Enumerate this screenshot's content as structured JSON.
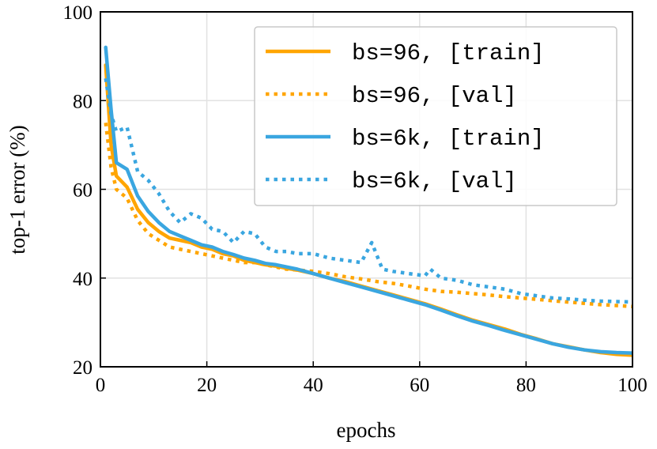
{
  "chart_data": {
    "type": "line",
    "title": "",
    "xlabel": "epochs",
    "ylabel": "top-1 error (%)",
    "xlim": [
      0,
      100
    ],
    "ylim": [
      20,
      100
    ],
    "x_ticks": [
      0,
      20,
      40,
      60,
      80,
      100
    ],
    "y_ticks": [
      20,
      40,
      60,
      80,
      100
    ],
    "grid": true,
    "legend_position": "top-right",
    "series": [
      {
        "name": "bs=96, [train]",
        "color": "#FFA500",
        "style": "solid",
        "x": [
          1,
          2,
          3,
          5,
          7,
          9,
          11,
          13,
          15,
          17,
          19,
          21,
          23,
          25,
          27,
          29,
          31,
          33,
          35,
          37,
          40,
          43,
          46,
          49,
          52,
          55,
          58,
          61,
          64,
          67,
          70,
          73,
          76,
          79,
          82,
          85,
          88,
          91,
          94,
          97,
          100
        ],
        "values": [
          88,
          70,
          63,
          60.5,
          55.5,
          52.5,
          50.5,
          49,
          48.5,
          48,
          47,
          46.5,
          45.5,
          45,
          44,
          43.5,
          43,
          42.7,
          42.2,
          41.8,
          41,
          40,
          39.2,
          38.2,
          37.2,
          36.2,
          35.2,
          34.2,
          33,
          31.7,
          30.5,
          29.5,
          28.5,
          27.3,
          26.3,
          25.2,
          24.5,
          23.8,
          23.2,
          22.8,
          22.6
        ]
      },
      {
        "name": "bs=96, [val]",
        "color": "#FFA500",
        "style": "dotted",
        "x": [
          1,
          2,
          3,
          5,
          7,
          9,
          11,
          13,
          15,
          17,
          19,
          21,
          23,
          25,
          27,
          29,
          31,
          33,
          35,
          37,
          40,
          43,
          46,
          49,
          52,
          55,
          58,
          61,
          64,
          67,
          70,
          73,
          76,
          79,
          82,
          85,
          88,
          91,
          94,
          97,
          100
        ],
        "values": [
          75,
          65,
          60,
          58,
          53,
          50,
          48.5,
          47,
          46.5,
          46,
          45.5,
          45,
          44.5,
          44,
          43.5,
          43.5,
          43,
          42.5,
          42,
          41.8,
          41.5,
          41,
          40.3,
          39.8,
          39.2,
          38.8,
          38.2,
          37.5,
          37,
          36.8,
          36.5,
          36.2,
          35.8,
          35.5,
          35.2,
          34.9,
          34.6,
          34.3,
          34.0,
          33.8,
          33.6
        ]
      },
      {
        "name": "bs=6k, [train]",
        "color": "#3AA6E0",
        "style": "solid",
        "x": [
          1,
          2,
          3,
          5,
          7,
          9,
          11,
          13,
          15,
          17,
          19,
          21,
          23,
          25,
          27,
          29,
          31,
          33,
          35,
          37,
          40,
          43,
          46,
          49,
          52,
          55,
          58,
          61,
          64,
          67,
          70,
          73,
          76,
          79,
          82,
          85,
          88,
          91,
          94,
          97,
          100
        ],
        "values": [
          92,
          78,
          66,
          64.5,
          58.5,
          55,
          52.5,
          50.5,
          49.5,
          48.5,
          47.5,
          47,
          46,
          45.3,
          44.5,
          44,
          43.3,
          43,
          42.5,
          42,
          41,
          40,
          39,
          38,
          37,
          36,
          35,
          34,
          32.8,
          31.5,
          30.3,
          29.3,
          28.2,
          27.2,
          26.2,
          25.2,
          24.4,
          23.8,
          23.4,
          23.2,
          23.1
        ]
      },
      {
        "name": "bs=6k, [val]",
        "color": "#3AA6E0",
        "style": "dotted",
        "x": [
          1,
          2,
          3,
          5,
          7,
          9,
          11,
          13,
          15,
          17,
          19,
          21,
          23,
          25,
          27,
          29,
          31,
          33,
          35,
          37,
          40,
          43,
          46,
          49,
          51,
          53,
          55,
          58,
          61,
          62,
          64,
          67,
          70,
          73,
          76,
          79,
          82,
          85,
          88,
          91,
          94,
          97,
          100
        ],
        "values": [
          85,
          77,
          73,
          74,
          64,
          62,
          59,
          55,
          52.5,
          54.5,
          53.5,
          51,
          50.5,
          48,
          50.5,
          50,
          47,
          46,
          46,
          45.5,
          45.5,
          44.5,
          44,
          43.5,
          48,
          42,
          41.5,
          41,
          40.5,
          42,
          40,
          39.5,
          38.5,
          38,
          37.5,
          36.5,
          36,
          35.5,
          35.3,
          35,
          34.8,
          34.7,
          34.6
        ]
      }
    ]
  }
}
